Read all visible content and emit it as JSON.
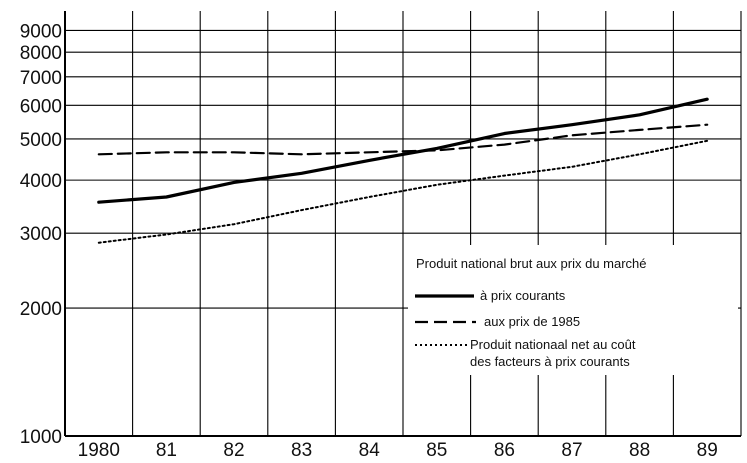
{
  "chart_data": {
    "type": "line",
    "y_scale": "log",
    "ylim": [
      1000,
      10000
    ],
    "xlim": [
      1980,
      1989
    ],
    "grid": true,
    "x_tick_labels": [
      "1980",
      "81",
      "82",
      "83",
      "84",
      "85",
      "86",
      "87",
      "88",
      "89"
    ],
    "y_tick_labels": [
      "1000",
      "2000",
      "3000",
      "4000",
      "5000",
      "6000",
      "7000",
      "8000",
      "9000"
    ],
    "y_ticks": [
      1000,
      2000,
      3000,
      4000,
      5000,
      6000,
      7000,
      8000,
      9000
    ],
    "legend": {
      "title": "Produit national brut aux prix du marché",
      "placement": "right"
    },
    "series": [
      {
        "name": "à prix courants",
        "style": "solid",
        "color": "#000000",
        "x": [
          1980,
          1981,
          1982,
          1983,
          1984,
          1985,
          1986,
          1987,
          1988,
          1989
        ],
        "y": [
          3550,
          3650,
          3950,
          4150,
          4450,
          4750,
          5150,
          5400,
          5700,
          6200
        ]
      },
      {
        "name": "aux prix de 1985",
        "style": "dashed",
        "color": "#000000",
        "x": [
          1980,
          1981,
          1982,
          1983,
          1984,
          1985,
          1986,
          1987,
          1988,
          1989
        ],
        "y": [
          4600,
          4650,
          4650,
          4600,
          4650,
          4700,
          4850,
          5100,
          5250,
          5400
        ]
      },
      {
        "name": "Produit nationaal net au coût des facteurs à prix courants",
        "name_lines": [
          "Produit nationaal net au coût",
          "des facteurs à prix courants"
        ],
        "style": "dotted",
        "color": "#000000",
        "x": [
          1980,
          1981,
          1982,
          1983,
          1984,
          1985,
          1986,
          1987,
          1988,
          1989
        ],
        "y": [
          2850,
          2980,
          3150,
          3400,
          3650,
          3900,
          4100,
          4300,
          4600,
          4950
        ]
      }
    ]
  }
}
